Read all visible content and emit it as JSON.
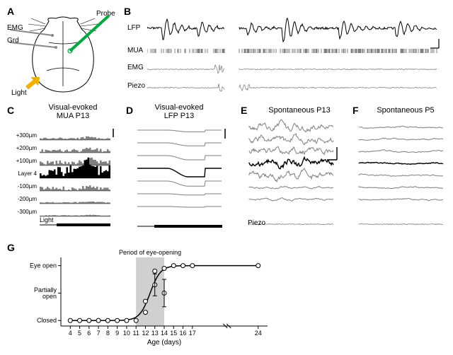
{
  "panelA": {
    "label": "A",
    "annotations": {
      "emg": "EMG",
      "grd": "Grd",
      "probe": "Probe",
      "light": "Light"
    },
    "colors": {
      "outline": "#000000",
      "probe": "#00a840",
      "light": "#f2b100"
    }
  },
  "panelB": {
    "label": "B",
    "rows": {
      "lfp": "LFP",
      "mua": "MUA",
      "emg": "EMG",
      "piezo": "Piezo"
    },
    "trace_color": "#000000",
    "aux_color": "#777777"
  },
  "panelC": {
    "label": "C",
    "title": "Visual-evoked\nMUA P13",
    "depths": [
      "+300µm",
      "+200µm",
      "+100µm",
      "Layer 4",
      "-100µm",
      "-200µm",
      "-300µm"
    ],
    "highlight_index": 3,
    "stim_label": "Light",
    "colors": {
      "bar": "#808080",
      "highlight": "#000000"
    }
  },
  "panelD": {
    "label": "D",
    "title": "Visual-evoked\nLFP P13",
    "colors": {
      "trace": "#808080",
      "highlight": "#000000"
    }
  },
  "panelE": {
    "label": "E",
    "title": "Spontaneous P13",
    "piezo_label": "Piezo",
    "colors": {
      "trace": "#808080",
      "highlight": "#000000"
    }
  },
  "panelF": {
    "label": "F",
    "title": "Spontaneous P5",
    "colors": {
      "trace": "#808080",
      "highlight": "#000000"
    }
  },
  "panelG": {
    "label": "G",
    "xlabel": "Age (days)",
    "yticks": [
      "Eye open",
      "Partially\nopen",
      "Closed"
    ],
    "yvals": [
      2,
      1,
      0
    ],
    "xticks": [
      4,
      5,
      6,
      7,
      8,
      9,
      10,
      11,
      12,
      13,
      14,
      15,
      16,
      17,
      24
    ],
    "shaded_label": "Period of eye-opening",
    "shaded_range": [
      11,
      14
    ],
    "points": [
      {
        "x": 4,
        "y": 0
      },
      {
        "x": 5,
        "y": 0
      },
      {
        "x": 6,
        "y": 0
      },
      {
        "x": 7,
        "y": 0
      },
      {
        "x": 8,
        "y": 0
      },
      {
        "x": 9,
        "y": 0
      },
      {
        "x": 10,
        "y": 0
      },
      {
        "x": 11,
        "y": 0
      },
      {
        "x": 12,
        "y": 0.3
      },
      {
        "x": 12,
        "y": 0.7
      },
      {
        "x": 13,
        "y": 1.3
      },
      {
        "x": 13,
        "y": 1.8
      },
      {
        "x": 14,
        "y": 1.0
      },
      {
        "x": 14,
        "y": 1.9
      },
      {
        "x": 15,
        "y": 2
      },
      {
        "x": 16,
        "y": 2
      },
      {
        "x": 17,
        "y": 2
      },
      {
        "x": 24,
        "y": 2
      }
    ],
    "colors": {
      "shade": "#d0d0d0",
      "line": "#000000",
      "point_fill": "#ffffff",
      "point_stroke": "#000000",
      "axis": "#000000"
    },
    "xlim": [
      3,
      25
    ],
    "ylim": [
      -0.2,
      2.3
    ]
  }
}
